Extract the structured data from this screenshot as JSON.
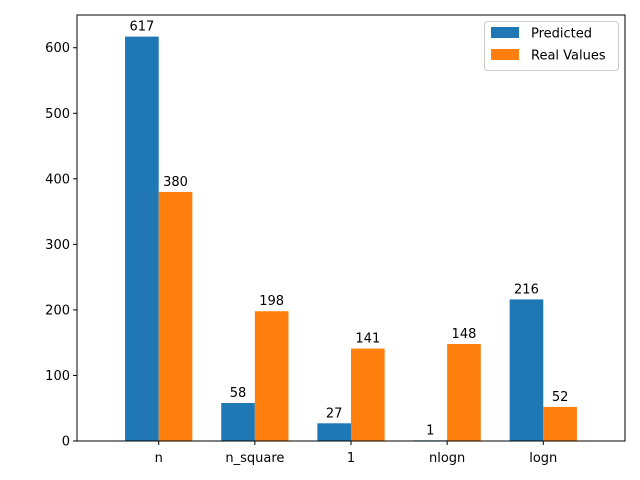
{
  "chart_data": {
    "type": "bar",
    "categories": [
      "n",
      "n_square",
      "1",
      "nlogn",
      "logn"
    ],
    "series": [
      {
        "name": "Predicted",
        "values": [
          617,
          58,
          27,
          1,
          216
        ],
        "color": "#1f77b4"
      },
      {
        "name": "Real Values",
        "values": [
          380,
          198,
          141,
          148,
          52
        ],
        "color": "#ff7f0e"
      }
    ],
    "title": "",
    "xlabel": "",
    "ylabel": "",
    "ylim": [
      0,
      649.95
    ],
    "yticks": [
      0,
      100,
      200,
      300,
      400,
      500,
      600
    ],
    "grid": false,
    "legend_position": "top-right"
  }
}
